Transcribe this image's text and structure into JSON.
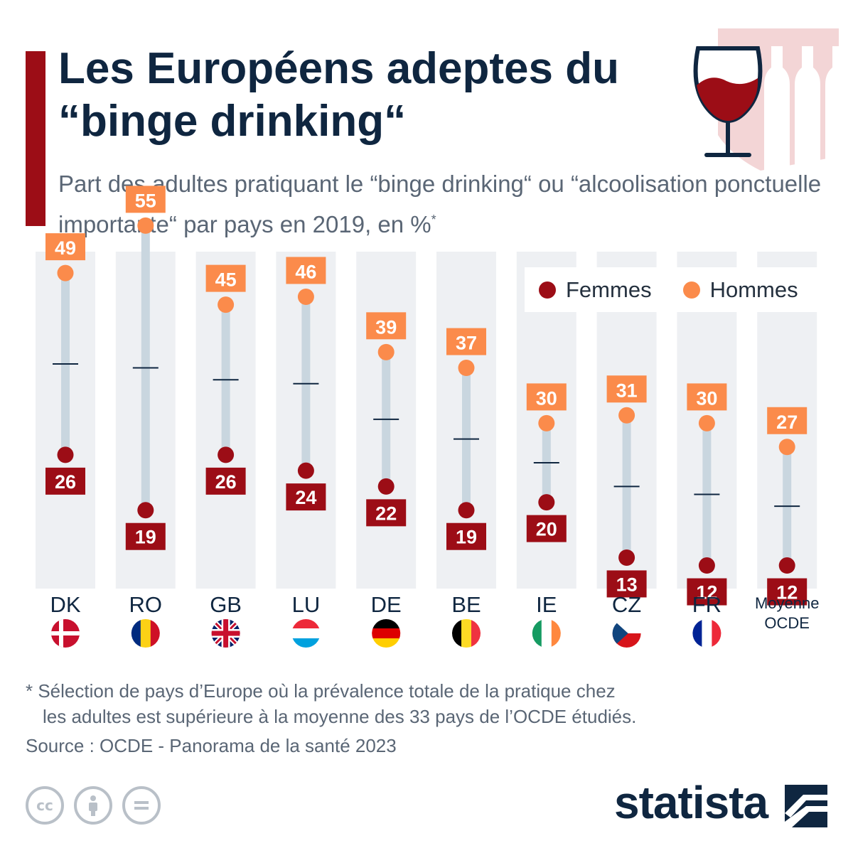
{
  "header": {
    "title": "Les Européens adeptes du “binge drinking“",
    "subtitle": "Part des adultes pratiquant le “binge drinking“ ou “alcoolisation ponctuelle importante“ par pays en 2019, en %",
    "subtitle_mark": "*"
  },
  "legend": {
    "women": "Femmes",
    "men": "Hommes"
  },
  "colors": {
    "women": "#9c0d16",
    "men": "#fb8b4b",
    "column_bg": "#eef0f3",
    "connector": "#c9d6df",
    "dark_text": "#0f2640",
    "accent": "#9c0d16"
  },
  "chart_data": {
    "type": "dot-range",
    "title": "Les Européens adeptes du “binge drinking“",
    "categories": [
      "DK",
      "RO",
      "GB",
      "LU",
      "DE",
      "BE",
      "IE",
      "CZ",
      "FR",
      "Moyenne OCDE"
    ],
    "flags": [
      "dk",
      "ro",
      "gb",
      "lu",
      "de",
      "be",
      "ie",
      "cz",
      "fr",
      null
    ],
    "series": [
      {
        "name": "Femmes",
        "color": "#9c0d16",
        "values": [
          26,
          19,
          26,
          24,
          22,
          19,
          20,
          13,
          12,
          12
        ]
      },
      {
        "name": "Hommes",
        "color": "#fb8b4b",
        "values": [
          49,
          55,
          45,
          46,
          39,
          37,
          30,
          31,
          30,
          27
        ]
      }
    ],
    "ylim": [
      10,
      57
    ],
    "legend_position": "top-right",
    "grid": false
  },
  "footer": {
    "footnote_line1": "* Sélection de pays d’Europe où la prévalence totale de la pratique chez",
    "footnote_line2": "les adultes est supérieure à la moyenne des 33 pays de l’OCDE étudiés.",
    "source": "Source : OCDE - Panorama de la santé 2023",
    "brand": "statista",
    "license_icons": [
      "creative-commons-icon",
      "attribution-icon",
      "no-derivatives-icon"
    ]
  }
}
